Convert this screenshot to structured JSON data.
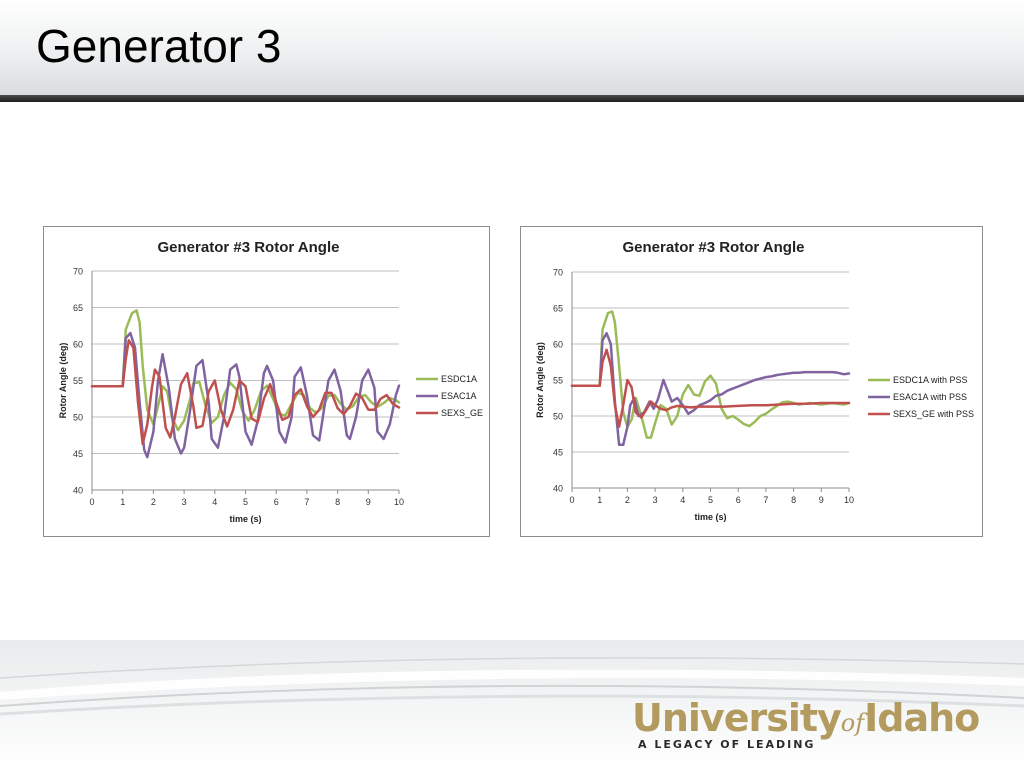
{
  "slide": {
    "title": "Generator 3",
    "logo": {
      "university": "University",
      "of": "of",
      "idaho": "Idaho",
      "tagline": "A LEGACY OF LEADING"
    }
  },
  "chart_data": [
    {
      "type": "line",
      "title": "Generator #3 Rotor Angle",
      "xlabel": "time (s)",
      "ylabel": "Rotor Angle (deg)",
      "xlim": [
        0,
        10
      ],
      "ylim": [
        40,
        70
      ],
      "xticks": [
        0,
        1,
        2,
        3,
        4,
        5,
        6,
        7,
        8,
        9,
        10
      ],
      "yticks": [
        40,
        45,
        50,
        55,
        60,
        65,
        70
      ],
      "grid": "horizontal",
      "legend": "right",
      "series": [
        {
          "name": "ESDC1A",
          "color": "#9bbb59",
          "x": [
            0,
            1,
            1.1,
            1.3,
            1.45,
            1.55,
            1.65,
            1.8,
            2.0,
            2.15,
            2.3,
            2.45,
            2.6,
            2.8,
            3.0,
            3.2,
            3.3,
            3.5,
            3.7,
            3.9,
            4.1,
            4.3,
            4.5,
            4.7,
            4.9,
            5.1,
            5.3,
            5.5,
            5.7,
            5.9,
            6.1,
            6.3,
            6.5,
            6.7,
            6.9,
            7.1,
            7.3,
            7.5,
            7.7,
            7.9,
            8.1,
            8.3,
            8.5,
            8.7,
            8.9,
            9.1,
            9.3,
            9.5,
            9.7,
            9.9,
            10
          ],
          "y": [
            54.2,
            54.2,
            62.0,
            64.2,
            64.6,
            63.0,
            57.0,
            51.0,
            49.0,
            51.5,
            54.2,
            53.5,
            50.0,
            48.2,
            49.5,
            52.5,
            54.6,
            54.8,
            51.5,
            49.2,
            50.0,
            53.0,
            54.7,
            53.8,
            50.8,
            49.5,
            51.0,
            53.5,
            54.3,
            52.5,
            50.4,
            50.2,
            51.8,
            53.3,
            53.0,
            51.2,
            50.6,
            51.3,
            52.9,
            53.0,
            51.8,
            51.0,
            51.5,
            52.8,
            53.0,
            52.0,
            51.4,
            51.9,
            52.6,
            52.3,
            52.0
          ]
        },
        {
          "name": "ESAC1A",
          "color": "#8064a2",
          "x": [
            0,
            1,
            1.1,
            1.25,
            1.4,
            1.55,
            1.7,
            1.8,
            2.0,
            2.15,
            2.3,
            2.5,
            2.7,
            2.9,
            3.0,
            3.2,
            3.4,
            3.6,
            3.8,
            3.9,
            4.1,
            4.3,
            4.5,
            4.7,
            4.8,
            5.0,
            5.2,
            5.4,
            5.6,
            5.7,
            5.9,
            6.1,
            6.3,
            6.5,
            6.6,
            6.8,
            7.0,
            7.2,
            7.4,
            7.5,
            7.7,
            7.9,
            8.1,
            8.3,
            8.4,
            8.6,
            8.8,
            9.0,
            9.2,
            9.3,
            9.5,
            9.7,
            9.9,
            10
          ],
          "y": [
            54.2,
            54.2,
            60.8,
            61.5,
            59.5,
            52.0,
            45.5,
            44.5,
            48.0,
            55.0,
            58.6,
            54.0,
            47.0,
            45.0,
            45.8,
            51.0,
            57.0,
            57.8,
            52.0,
            47.0,
            45.8,
            50.0,
            56.5,
            57.2,
            55.5,
            48.0,
            46.2,
            49.5,
            56.0,
            57.0,
            55.0,
            48.0,
            46.5,
            50.0,
            55.5,
            56.8,
            53.0,
            47.5,
            46.8,
            49.5,
            55.0,
            56.5,
            53.5,
            47.5,
            47.0,
            50.0,
            55.0,
            56.5,
            54.0,
            48.0,
            47.0,
            49.0,
            53.0,
            54.3
          ]
        },
        {
          "name": "SEXS_GE",
          "color": "#c0504d",
          "x": [
            0,
            1,
            1.1,
            1.2,
            1.35,
            1.5,
            1.65,
            1.8,
            1.95,
            2.05,
            2.2,
            2.4,
            2.55,
            2.7,
            2.9,
            3.1,
            3.3,
            3.4,
            3.6,
            3.8,
            4.0,
            4.2,
            4.4,
            4.6,
            4.8,
            5.0,
            5.2,
            5.4,
            5.6,
            5.8,
            6.0,
            6.2,
            6.4,
            6.6,
            6.8,
            7.0,
            7.2,
            7.4,
            7.6,
            7.8,
            8.0,
            8.2,
            8.4,
            8.6,
            8.8,
            9.0,
            9.2,
            9.4,
            9.6,
            9.8,
            10
          ],
          "y": [
            54.2,
            54.2,
            58.0,
            60.5,
            59.5,
            52.0,
            46.3,
            49.0,
            54.0,
            56.5,
            55.5,
            48.5,
            47.2,
            50.0,
            54.5,
            56.0,
            51.5,
            48.5,
            48.8,
            53.5,
            55.0,
            51.0,
            48.7,
            51.0,
            55.0,
            54.2,
            49.8,
            49.3,
            52.5,
            54.5,
            52.0,
            49.6,
            50.0,
            53.0,
            53.8,
            51.5,
            50.0,
            51.0,
            53.3,
            53.3,
            51.2,
            50.4,
            51.5,
            53.2,
            52.6,
            51.0,
            51.0,
            52.5,
            53.0,
            51.8,
            51.3
          ]
        }
      ]
    },
    {
      "type": "line",
      "title": "Generator #3 Rotor Angle",
      "xlabel": "time (s)",
      "ylabel": "Rotor Angle (deg)",
      "xlim": [
        0,
        10
      ],
      "ylim": [
        40,
        70
      ],
      "xticks": [
        0,
        1,
        2,
        3,
        4,
        5,
        6,
        7,
        8,
        9,
        10
      ],
      "yticks": [
        40,
        45,
        50,
        55,
        60,
        65,
        70
      ],
      "grid": "horizontal",
      "legend": "right",
      "series": [
        {
          "name": "ESDC1A with PSS",
          "color": "#9bbb59",
          "x": [
            0,
            1,
            1.1,
            1.3,
            1.45,
            1.55,
            1.7,
            1.85,
            2.0,
            2.15,
            2.3,
            2.5,
            2.7,
            2.85,
            3.0,
            3.2,
            3.4,
            3.6,
            3.8,
            4.0,
            4.2,
            4.4,
            4.6,
            4.8,
            5.0,
            5.2,
            5.4,
            5.6,
            5.8,
            6.0,
            6.2,
            6.4,
            6.6,
            6.8,
            7.0,
            7.2,
            7.4,
            7.6,
            7.8,
            8.0,
            8.2,
            8.4,
            8.6,
            8.8,
            9.0,
            9.2,
            9.4,
            9.6,
            9.8,
            10
          ],
          "y": [
            54.2,
            54.2,
            62.0,
            64.3,
            64.5,
            63.0,
            57.0,
            50.5,
            48.5,
            49.5,
            52.5,
            50.0,
            47.0,
            47.0,
            49.0,
            51.5,
            51.0,
            48.8,
            50.0,
            53.0,
            54.3,
            53.0,
            52.8,
            54.8,
            55.6,
            54.5,
            51.0,
            49.7,
            50.0,
            49.5,
            48.9,
            48.6,
            49.2,
            50.0,
            50.3,
            50.9,
            51.4,
            51.9,
            52.0,
            51.8,
            51.6,
            51.7,
            51.8,
            51.7,
            51.6,
            51.7,
            51.8,
            51.7,
            51.6,
            51.8
          ]
        },
        {
          "name": "ESAC1A with PSS",
          "color": "#8064a2",
          "x": [
            0,
            1,
            1.1,
            1.25,
            1.4,
            1.55,
            1.7,
            1.85,
            2.0,
            2.1,
            2.25,
            2.4,
            2.6,
            2.8,
            2.95,
            3.1,
            3.3,
            3.45,
            3.6,
            3.8,
            4.0,
            4.2,
            4.4,
            4.6,
            4.8,
            5.0,
            5.2,
            5.4,
            5.6,
            5.8,
            6.0,
            6.2,
            6.4,
            6.6,
            6.8,
            7.0,
            7.2,
            7.4,
            7.6,
            7.8,
            8.0,
            8.2,
            8.4,
            8.6,
            8.8,
            9.0,
            9.2,
            9.4,
            9.6,
            9.8,
            10
          ],
          "y": [
            54.2,
            54.2,
            60.5,
            61.5,
            60.0,
            52.0,
            46.0,
            46.0,
            48.5,
            51.5,
            52.5,
            50.0,
            50.5,
            52.0,
            51.0,
            52.3,
            55.0,
            53.5,
            52.0,
            52.5,
            51.5,
            50.3,
            50.8,
            51.5,
            51.8,
            52.2,
            52.8,
            53.0,
            53.5,
            53.8,
            54.1,
            54.4,
            54.7,
            55.0,
            55.2,
            55.4,
            55.5,
            55.7,
            55.8,
            55.9,
            56.0,
            56.0,
            56.1,
            56.1,
            56.1,
            56.1,
            56.1,
            56.1,
            56.0,
            55.8,
            55.9
          ]
        },
        {
          "name": "SEXS_GE with PSS",
          "color": "#c0504d",
          "x": [
            0,
            1,
            1.1,
            1.25,
            1.4,
            1.55,
            1.7,
            1.85,
            2.0,
            2.15,
            2.3,
            2.5,
            2.7,
            2.85,
            3.0,
            3.2,
            3.4,
            3.6,
            3.8,
            4.0,
            4.3,
            4.6,
            5.0,
            5.5,
            6.0,
            6.5,
            7.0,
            7.5,
            8.0,
            8.5,
            9.0,
            9.5,
            10
          ],
          "y": [
            54.2,
            54.2,
            57.5,
            59.2,
            57.0,
            51.5,
            48.5,
            51.5,
            55.0,
            54.0,
            50.5,
            49.8,
            51.0,
            52.0,
            51.5,
            51.0,
            50.8,
            51.2,
            51.4,
            51.3,
            51.2,
            51.3,
            51.3,
            51.3,
            51.4,
            51.5,
            51.5,
            51.6,
            51.7,
            51.7,
            51.8,
            51.8,
            51.8
          ]
        }
      ]
    }
  ]
}
